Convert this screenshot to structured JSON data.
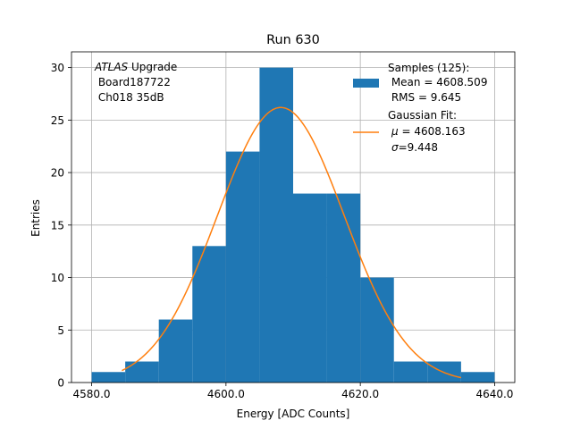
{
  "chart_data": {
    "type": "histogram",
    "title": "Run 630",
    "xlabel": "Energy [ADC Counts]",
    "ylabel": "Entries",
    "xlim": [
      4577,
      4643
    ],
    "ylim": [
      0,
      31.5
    ],
    "xticks": [
      4580,
      4600,
      4620,
      4640
    ],
    "xtick_labels": [
      "4580.0",
      "4600.0",
      "4620.0",
      "4640.0"
    ],
    "yticks": [
      0,
      5,
      10,
      15,
      20,
      25,
      30
    ],
    "ytick_labels": [
      "0",
      "5",
      "10",
      "15",
      "20",
      "25",
      "30"
    ],
    "grid": true,
    "bin_edges": [
      4580,
      4585,
      4590,
      4595,
      4600,
      4605,
      4610,
      4615,
      4620,
      4625,
      4630,
      4635,
      4640
    ],
    "bin_counts": [
      1,
      2,
      6,
      13,
      22,
      30,
      18,
      18,
      10,
      2,
      2,
      1
    ],
    "bar_color": "#1f77b4",
    "fit": {
      "type": "gaussian",
      "mu": 4608.163,
      "sigma": 9.448,
      "amplitude": 26.2,
      "x_range": [
        4584.5,
        4635
      ],
      "color": "#ff7f0e"
    },
    "annotation": {
      "italic": "ATLAS",
      "line1_rest": " Upgrade",
      "line2": " Board187722",
      "line3": " Ch018 35dB"
    },
    "legend": {
      "position": "top-right",
      "samples_title": "Samples (125):",
      "samples_mean": " Mean = 4608.509",
      "samples_rms": " RMS = 9.645",
      "fit_title": "Gaussian Fit:",
      "fit_mu_symbol": "μ",
      "fit_mu_text": " = 4608.163",
      "fit_sigma_symbol": "σ",
      "fit_sigma_text": "=9.448"
    }
  }
}
